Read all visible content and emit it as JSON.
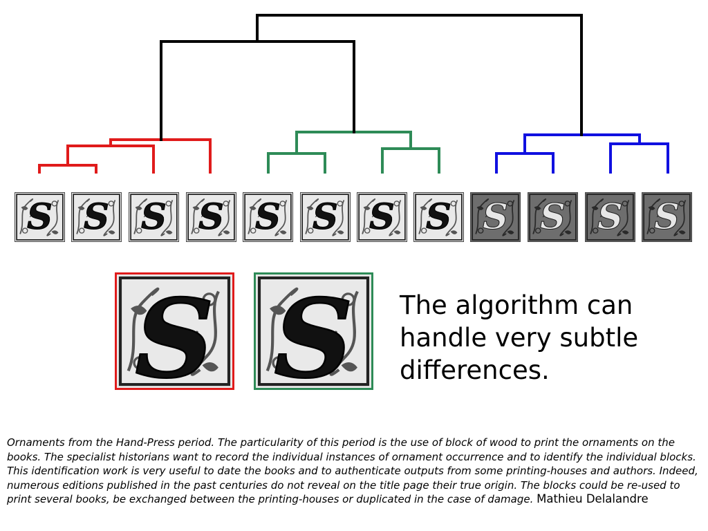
{
  "colors": {
    "top_links": "#000000",
    "cluster_1": "#e01b1b",
    "cluster_2": "#2e8b57",
    "cluster_3": "#1010e0"
  },
  "thumbnails": [
    {
      "cluster": 1,
      "glyph": "S",
      "style": "light"
    },
    {
      "cluster": 1,
      "glyph": "S",
      "style": "light"
    },
    {
      "cluster": 1,
      "glyph": "S",
      "style": "light"
    },
    {
      "cluster": 1,
      "glyph": "S",
      "style": "light"
    },
    {
      "cluster": 2,
      "glyph": "S",
      "style": "light"
    },
    {
      "cluster": 2,
      "glyph": "S",
      "style": "light"
    },
    {
      "cluster": 2,
      "glyph": "S",
      "style": "light"
    },
    {
      "cluster": 2,
      "glyph": "S",
      "style": "light"
    },
    {
      "cluster": 3,
      "glyph": "S",
      "style": "dark"
    },
    {
      "cluster": 3,
      "glyph": "S",
      "style": "dark"
    },
    {
      "cluster": 3,
      "glyph": "S",
      "style": "dark"
    },
    {
      "cluster": 3,
      "glyph": "S",
      "style": "dark"
    }
  ],
  "zoom_examples": [
    {
      "cluster": 1,
      "glyph": "S"
    },
    {
      "cluster": 2,
      "glyph": "S"
    }
  ],
  "headline": "The algorithm can handle very subtle differences.",
  "caption": {
    "text": " Ornaments from the Hand-Press period. The particularity of this period is the use of block of wood to print the ornaments on the books. The specialist historians want to record the individual instances of ornament occurrence and to identify the individual blocks. This identification work is very useful to date the books and to authenticate outputs from some printing-houses and authors. Indeed, numerous editions published in the past centuries do not reveal on the title page their true origin. The blocks could be re-used to print several books, be exchanged between the printing-houses or duplicated in the case of damage.",
    "author": "Mathieu Delalandre"
  }
}
